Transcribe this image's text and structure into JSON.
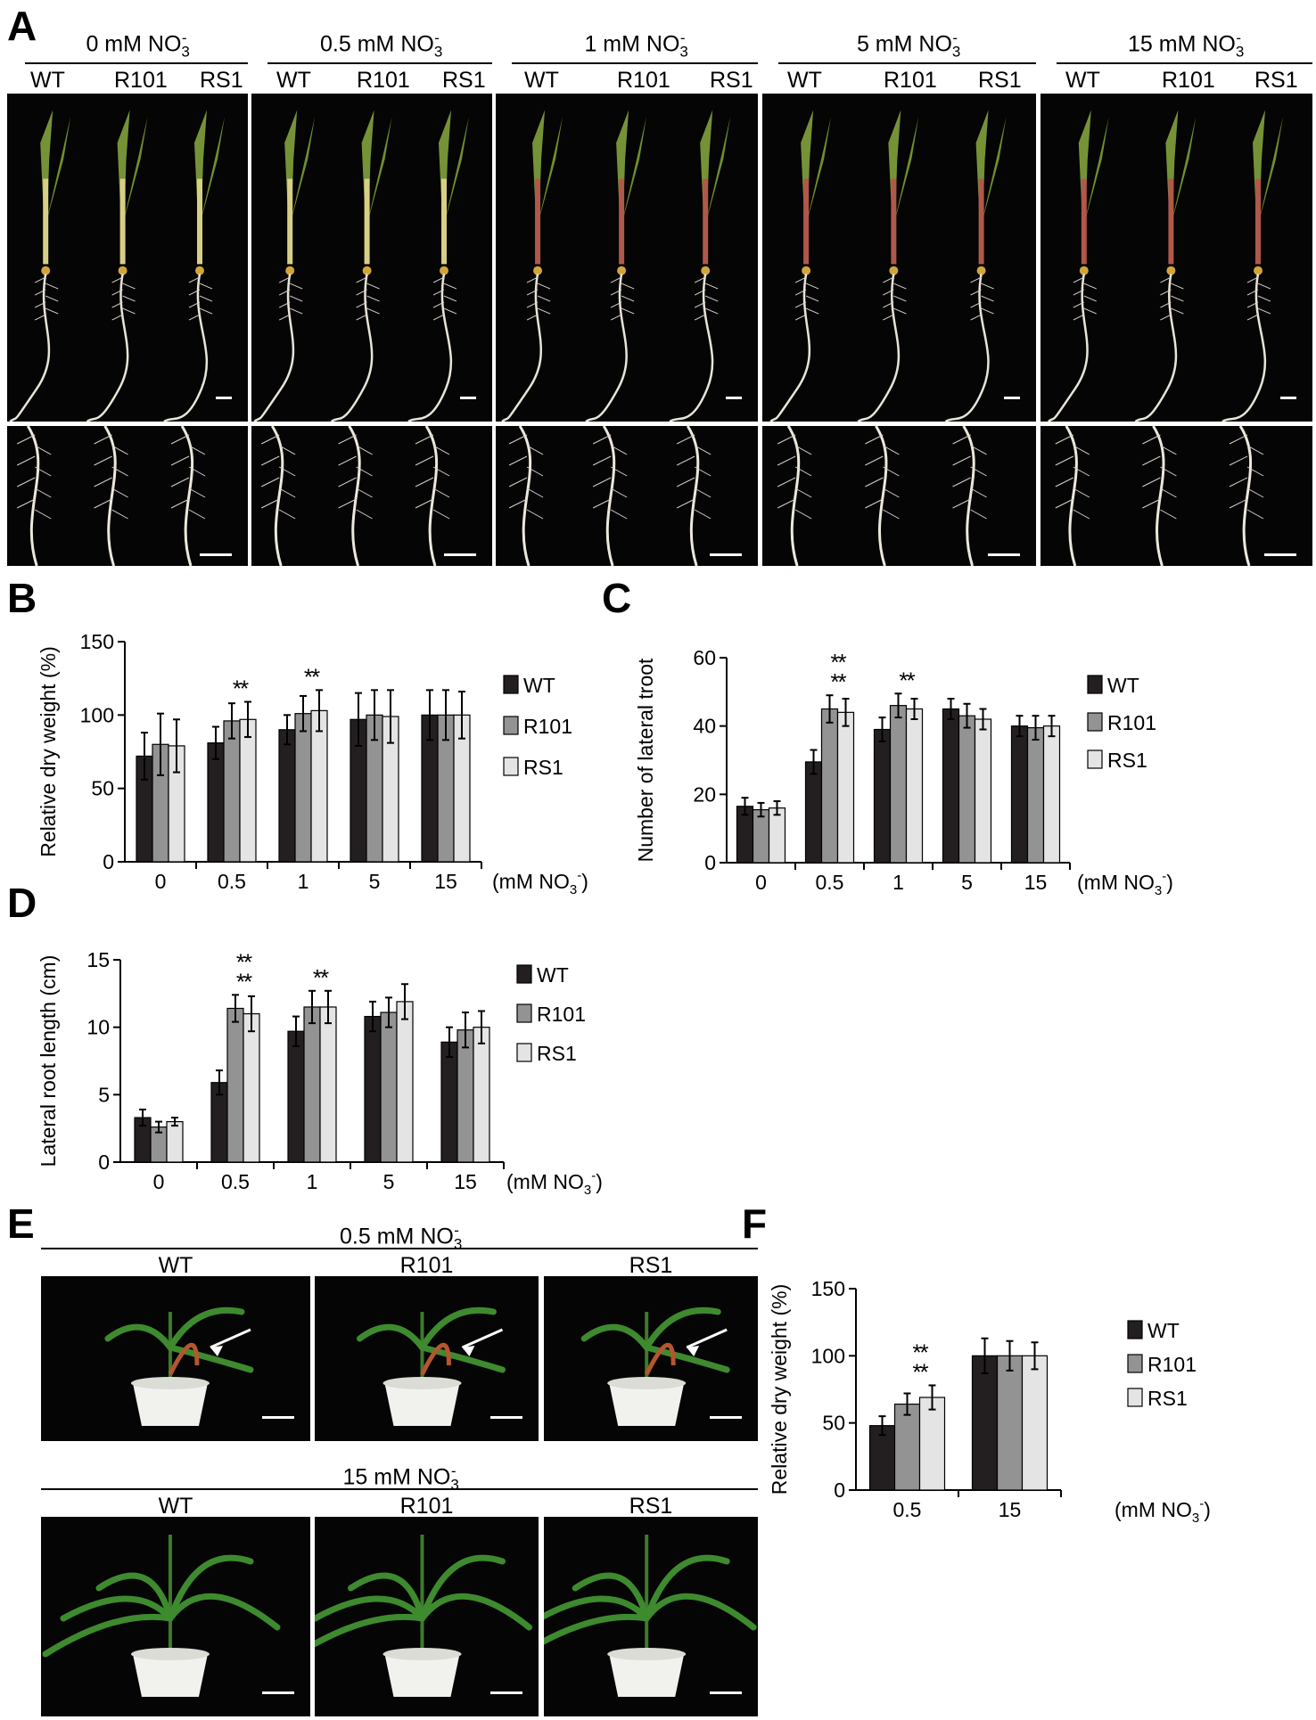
{
  "panel_letters": {
    "a": "A",
    "b": "B",
    "c": "C",
    "d": "D",
    "e": "E",
    "f": "F"
  },
  "panel_a": {
    "genotypes": [
      "WT",
      "R101",
      "RS1"
    ],
    "conditions": [
      {
        "label": "0 mM NO",
        "sub": "3",
        "sup": "-"
      },
      {
        "label": "0.5 mM NO",
        "sub": "3",
        "sup": "-"
      },
      {
        "label": "1 mM NO",
        "sub": "3",
        "sup": "-"
      },
      {
        "label": "5 mM NO",
        "sub": "3",
        "sup": "-"
      },
      {
        "label": "15 mM NO",
        "sub": "3",
        "sup": "-"
      }
    ]
  },
  "panel_e": {
    "top_condition": {
      "label": "0.5 mM NO",
      "sub": "3",
      "sup": "-"
    },
    "bottom_condition": {
      "label": "15 mM NO",
      "sub": "3",
      "sup": "-"
    },
    "genotypes": [
      "WT",
      "R101",
      "RS1"
    ]
  },
  "chart_data": [
    {
      "id": "B",
      "type": "bar",
      "ylabel": "Relative dry weight (%)",
      "xunit": "(mM NO3-)",
      "categories": [
        "0",
        "0.5",
        "1",
        "5",
        "15"
      ],
      "ylim": [
        0,
        150
      ],
      "yticks": [
        0,
        50,
        100,
        150
      ],
      "series": [
        {
          "name": "WT",
          "color": "#231f20",
          "values": [
            72,
            81,
            90,
            97,
            100
          ],
          "errors": [
            16,
            11,
            10,
            18,
            17
          ]
        },
        {
          "name": "R101",
          "color": "#939393",
          "values": [
            80,
            96,
            101,
            100,
            100
          ],
          "errors": [
            21,
            12,
            12,
            17,
            17
          ]
        },
        {
          "name": "RS1",
          "color": "#e4e4e4",
          "values": [
            79,
            97,
            103,
            99,
            100
          ],
          "errors": [
            18,
            12,
            14,
            18,
            16
          ]
        }
      ],
      "significance": [
        {
          "category": "0.5",
          "text": "**"
        },
        {
          "category": "1",
          "text": "**"
        }
      ]
    },
    {
      "id": "C",
      "type": "bar",
      "ylabel": "Number of lateral troot",
      "xunit": "(mM NO3-)",
      "categories": [
        "0",
        "0.5",
        "1",
        "5",
        "15"
      ],
      "ylim": [
        0,
        60
      ],
      "yticks": [
        0,
        20,
        40,
        60
      ],
      "series": [
        {
          "name": "WT",
          "color": "#231f20",
          "values": [
            16.5,
            29.5,
            39,
            45,
            40
          ],
          "errors": [
            2.5,
            3.5,
            3.5,
            3,
            3
          ]
        },
        {
          "name": "R101",
          "color": "#939393",
          "values": [
            15.5,
            45,
            46,
            43,
            39.5
          ],
          "errors": [
            2,
            4,
            3.5,
            3.5,
            3.5
          ]
        },
        {
          "name": "RS1",
          "color": "#e4e4e4",
          "values": [
            16,
            44,
            45,
            42,
            40
          ],
          "errors": [
            2,
            4,
            3,
            3,
            3
          ]
        }
      ],
      "significance": [
        {
          "category": "0.5",
          "text": "**"
        },
        {
          "category": "0.5",
          "text": "**"
        },
        {
          "category": "1",
          "text": "**"
        }
      ]
    },
    {
      "id": "D",
      "type": "bar",
      "ylabel": "Lateral root length (cm)",
      "xunit": "(mM NO3-)",
      "categories": [
        "0",
        "0.5",
        "1",
        "5",
        "15"
      ],
      "ylim": [
        0,
        15
      ],
      "yticks": [
        0,
        5,
        10,
        15
      ],
      "series": [
        {
          "name": "WT",
          "color": "#231f20",
          "values": [
            3.3,
            5.9,
            9.7,
            10.8,
            8.9
          ],
          "errors": [
            0.6,
            0.9,
            1.1,
            1.1,
            1.1
          ]
        },
        {
          "name": "R101",
          "color": "#939393",
          "values": [
            2.6,
            11.4,
            11.5,
            11.1,
            9.8
          ],
          "errors": [
            0.4,
            1,
            1.2,
            1.1,
            1.3
          ]
        },
        {
          "name": "RS1",
          "color": "#e4e4e4",
          "values": [
            3,
            11,
            11.5,
            11.9,
            10
          ],
          "errors": [
            0.3,
            1.3,
            1.2,
            1.3,
            1.2
          ]
        }
      ],
      "significance": [
        {
          "category": "0.5",
          "text": "**"
        },
        {
          "category": "0.5",
          "text": "**"
        },
        {
          "category": "1",
          "text": "**"
        }
      ]
    },
    {
      "id": "F",
      "type": "bar",
      "ylabel": "Relative dry weight (%)",
      "xunit": "(mM NO3-)",
      "categories": [
        "0.5",
        "15"
      ],
      "ylim": [
        0,
        150
      ],
      "yticks": [
        0,
        50,
        100,
        150
      ],
      "series": [
        {
          "name": "WT",
          "color": "#231f20",
          "values": [
            48,
            100
          ],
          "errors": [
            7,
            13
          ]
        },
        {
          "name": "R101",
          "color": "#939393",
          "values": [
            64,
            100
          ],
          "errors": [
            8,
            11
          ]
        },
        {
          "name": "RS1",
          "color": "#e4e4e4",
          "values": [
            69,
            100
          ],
          "errors": [
            9,
            10
          ]
        }
      ],
      "significance": [
        {
          "category": "0.5",
          "text": "**"
        },
        {
          "category": "0.5",
          "text": "**"
        }
      ]
    }
  ],
  "units": {
    "unit_prefix": "(mM NO",
    "unit_sub": "3",
    "unit_sup": "-",
    "unit_close": ")"
  }
}
